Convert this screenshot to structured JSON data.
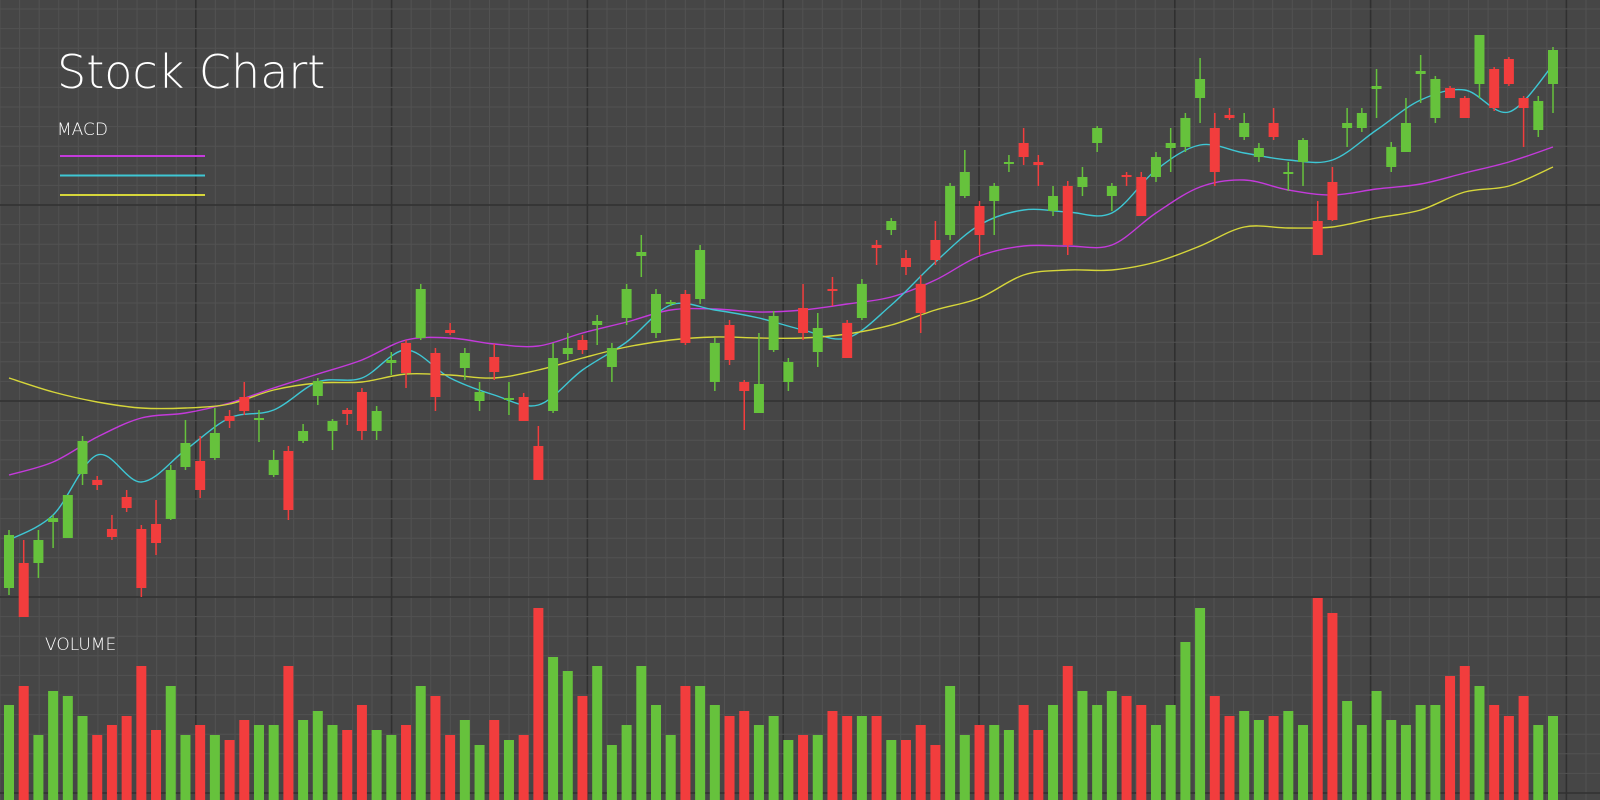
{
  "chart_data": {
    "type": "candlestick",
    "title": "Stock Chart",
    "legend_title": "MACD",
    "volume_label": "VOLUME",
    "ylim": [
      0,
      800
    ],
    "up_color": "#66c23c",
    "down_color": "#f23d3d",
    "ohlc": [
      [
        212,
        270,
        205,
        265
      ],
      [
        237,
        260,
        183,
        183
      ],
      [
        237,
        270,
        222,
        260
      ],
      [
        278,
        285,
        252,
        282
      ],
      [
        262,
        305,
        262,
        305
      ],
      [
        326,
        364,
        315,
        359
      ],
      [
        320,
        324,
        310,
        315
      ],
      [
        271,
        285,
        260,
        263
      ],
      [
        303,
        310,
        288,
        292
      ],
      [
        271,
        275,
        203,
        212
      ],
      [
        276,
        300,
        245,
        257
      ],
      [
        281,
        335,
        280,
        330
      ],
      [
        333,
        380,
        330,
        357
      ],
      [
        339,
        364,
        302,
        310
      ],
      [
        342,
        392,
        340,
        367
      ],
      [
        384,
        390,
        372,
        379
      ],
      [
        403,
        418,
        385,
        389
      ],
      [
        380,
        390,
        358,
        382
      ],
      [
        325,
        350,
        323,
        340
      ],
      [
        349,
        354,
        280,
        290
      ],
      [
        359,
        376,
        357,
        369
      ],
      [
        404,
        422,
        395,
        419
      ],
      [
        369,
        381,
        350,
        379
      ],
      [
        390,
        392,
        375,
        386
      ],
      [
        408,
        412,
        360,
        369
      ],
      [
        369,
        394,
        360,
        389
      ],
      [
        437,
        448,
        425,
        440
      ],
      [
        457,
        460,
        412,
        427
      ],
      [
        462,
        516,
        460,
        511
      ],
      [
        447,
        452,
        389,
        403
      ],
      [
        470,
        477,
        465,
        467
      ],
      [
        432,
        452,
        420,
        447
      ],
      [
        399,
        418,
        389,
        408
      ],
      [
        443,
        456,
        420,
        428
      ],
      [
        400,
        418,
        385,
        402
      ],
      [
        403,
        407,
        379,
        379
      ],
      [
        354,
        374,
        320,
        320
      ],
      [
        389,
        457,
        387,
        442
      ],
      [
        446,
        467,
        440,
        452
      ],
      [
        460,
        465,
        446,
        450
      ],
      [
        475,
        485,
        455,
        479
      ],
      [
        433,
        457,
        418,
        452
      ],
      [
        482,
        516,
        475,
        511
      ],
      [
        544,
        565,
        523,
        548
      ],
      [
        467,
        511,
        462,
        506
      ],
      [
        496,
        500,
        494,
        498
      ],
      [
        506,
        510,
        455,
        457
      ],
      [
        501,
        555,
        496,
        550
      ],
      [
        418,
        462,
        409,
        457
      ],
      [
        475,
        480,
        435,
        440
      ],
      [
        418,
        420,
        370,
        409
      ],
      [
        387,
        467,
        387,
        416
      ],
      [
        450,
        489,
        448,
        484
      ],
      [
        418,
        442,
        409,
        438
      ],
      [
        492,
        516,
        460,
        467
      ],
      [
        448,
        487,
        433,
        472
      ],
      [
        511,
        523,
        494,
        509
      ],
      [
        477,
        480,
        442,
        442
      ],
      [
        482,
        521,
        480,
        516
      ],
      [
        555,
        560,
        535,
        552
      ],
      [
        570,
        582,
        565,
        579
      ],
      [
        542,
        550,
        525,
        533
      ],
      [
        516,
        525,
        467,
        487
      ],
      [
        560,
        579,
        535,
        540
      ],
      [
        565,
        617,
        560,
        614
      ],
      [
        604,
        650,
        602,
        628
      ],
      [
        594,
        599,
        545,
        565
      ],
      [
        599,
        617,
        565,
        614
      ],
      [
        636,
        645,
        628,
        638
      ],
      [
        657,
        672,
        635,
        643
      ],
      [
        638,
        645,
        614,
        635
      ],
      [
        589,
        614,
        584,
        604
      ],
      [
        614,
        619,
        545,
        555
      ],
      [
        613,
        633,
        604,
        623
      ],
      [
        657,
        674,
        648,
        672
      ],
      [
        604,
        617,
        589,
        614
      ],
      [
        625,
        628,
        614,
        623
      ],
      [
        623,
        628,
        584,
        584
      ],
      [
        623,
        648,
        618,
        643
      ],
      [
        652,
        672,
        628,
        657
      ],
      [
        653,
        687,
        648,
        682
      ],
      [
        702,
        742,
        677,
        721
      ],
      [
        672,
        687,
        614,
        628
      ],
      [
        685,
        692,
        680,
        682
      ],
      [
        663,
        687,
        660,
        677
      ],
      [
        643,
        657,
        638,
        652
      ],
      [
        677,
        692,
        660,
        663
      ],
      [
        626,
        638,
        609,
        628
      ],
      [
        638,
        662,
        614,
        660
      ],
      [
        579,
        599,
        545,
        545
      ],
      [
        618,
        633,
        579,
        580
      ],
      [
        672,
        692,
        653,
        677
      ],
      [
        672,
        692,
        668,
        687
      ],
      [
        711,
        731,
        682,
        714
      ],
      [
        633,
        658,
        628,
        653
      ],
      [
        648,
        702,
        648,
        677
      ],
      [
        726,
        745,
        697,
        729
      ],
      [
        682,
        724,
        677,
        721
      ],
      [
        712,
        714,
        702,
        702
      ],
      [
        702,
        704,
        682,
        682
      ],
      [
        716,
        765,
        702,
        765
      ],
      [
        731,
        733,
        689,
        692
      ],
      [
        741,
        743,
        714,
        716
      ],
      [
        702,
        704,
        653,
        692
      ],
      [
        670,
        704,
        663,
        699
      ],
      [
        716,
        753,
        687,
        750
      ]
    ],
    "volume": [
      95,
      114,
      65,
      109,
      104,
      84,
      65,
      75,
      84,
      134,
      70,
      114,
      65,
      75,
      65,
      60,
      80,
      75,
      75,
      134,
      80,
      89,
      75,
      70,
      95,
      70,
      65,
      75,
      114,
      104,
      65,
      80,
      55,
      80,
      60,
      65,
      192,
      143,
      129,
      104,
      134,
      55,
      75,
      134,
      95,
      65,
      114,
      114,
      95,
      84,
      89,
      75,
      84,
      60,
      65,
      65,
      89,
      84,
      84,
      84,
      60,
      60,
      75,
      55,
      114,
      65,
      75,
      75,
      70,
      95,
      70,
      95,
      134,
      109,
      95,
      109,
      104,
      95,
      75,
      95,
      158,
      192,
      104,
      84,
      89,
      80,
      84,
      89,
      75,
      202,
      187,
      99,
      75,
      109,
      80,
      75,
      95,
      95,
      124,
      134,
      114,
      95,
      84,
      104,
      75,
      84
    ],
    "series": [
      {
        "color": "#c43adb",
        "x": [
          0,
          3,
          6,
          9,
          12,
          15,
          18,
          21,
          24,
          27,
          30,
          33,
          36,
          39,
          42,
          45,
          48,
          51,
          54,
          57,
          60,
          63,
          66,
          69,
          72,
          75,
          78,
          81,
          84,
          87,
          90,
          93,
          96,
          99,
          102,
          105
        ],
        "values": [
          325,
          338,
          363,
          382,
          387,
          397,
          412,
          426,
          440,
          460,
          462,
          456,
          454,
          467,
          478,
          490,
          491,
          488,
          490,
          496,
          503,
          520,
          544,
          554,
          554,
          555,
          587,
          613,
          620,
          610,
          605,
          611,
          616,
          627,
          638,
          653
        ]
      },
      {
        "color": "#3ec7d4",
        "x": [
          0,
          3,
          6,
          9,
          12,
          15,
          18,
          21,
          24,
          27,
          30,
          33,
          36,
          39,
          42,
          45,
          48,
          51,
          54,
          57,
          60,
          63,
          66,
          69,
          72,
          75,
          78,
          81,
          84,
          87,
          90,
          93,
          96,
          99,
          102,
          105
        ],
        "values": [
          260,
          285,
          345,
          318,
          350,
          382,
          390,
          418,
          422,
          450,
          422,
          405,
          395,
          430,
          458,
          495,
          490,
          482,
          470,
          462,
          495,
          538,
          575,
          590,
          588,
          587,
          630,
          655,
          647,
          640,
          640,
          670,
          700,
          710,
          688,
          735
        ]
      },
      {
        "color": "#d6d63a",
        "x": [
          0,
          3,
          6,
          9,
          12,
          15,
          18,
          21,
          24,
          27,
          30,
          33,
          36,
          39,
          42,
          45,
          48,
          51,
          54,
          57,
          60,
          63,
          66,
          69,
          72,
          75,
          78,
          81,
          84,
          87,
          90,
          93,
          96,
          99,
          102,
          105
        ],
        "values": [
          422,
          408,
          398,
          392,
          392,
          396,
          410,
          417,
          418,
          426,
          425,
          422,
          430,
          442,
          453,
          460,
          463,
          462,
          462,
          466,
          475,
          490,
          502,
          525,
          530,
          530,
          538,
          554,
          573,
          572,
          573,
          582,
          590,
          608,
          614,
          633
        ]
      }
    ]
  }
}
